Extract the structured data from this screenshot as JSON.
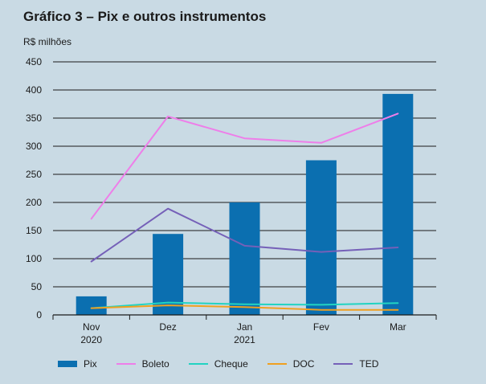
{
  "chart_data": {
    "type": "bar",
    "title": "Gráfico 3 – Pix e outros instrumentos",
    "ylabel": "R$ milhões",
    "xlabel": "",
    "ylim": [
      0,
      450
    ],
    "yticks": [
      "0",
      "50",
      "100",
      "150",
      "200",
      "250",
      "300",
      "350",
      "400",
      "450"
    ],
    "grid": true,
    "categories": [
      {
        "line1": "Nov",
        "line2": "2020"
      },
      {
        "line1": "Dez",
        "line2": ""
      },
      {
        "line1": "Jan",
        "line2": "2021"
      },
      {
        "line1": "Fev",
        "line2": ""
      },
      {
        "line1": "Mar",
        "line2": ""
      }
    ],
    "series": [
      {
        "name": "Pix",
        "kind": "bar",
        "color": "#0b6fb0",
        "values": [
          33,
          144,
          200,
          275,
          393
        ]
      },
      {
        "name": "Boleto",
        "kind": "line",
        "color": "#ee7ee9",
        "values": [
          171,
          353,
          314,
          306,
          358
        ]
      },
      {
        "name": "Cheque",
        "kind": "line",
        "color": "#22d3c2",
        "values": [
          12,
          22,
          19,
          18,
          21
        ]
      },
      {
        "name": "DOC",
        "kind": "line",
        "color": "#f0a020",
        "values": [
          12,
          17,
          14,
          9,
          9
        ]
      },
      {
        "name": "TED",
        "kind": "line",
        "color": "#7560b8",
        "values": [
          95,
          189,
          123,
          112,
          120
        ]
      }
    ],
    "legend_position": "bottom"
  }
}
